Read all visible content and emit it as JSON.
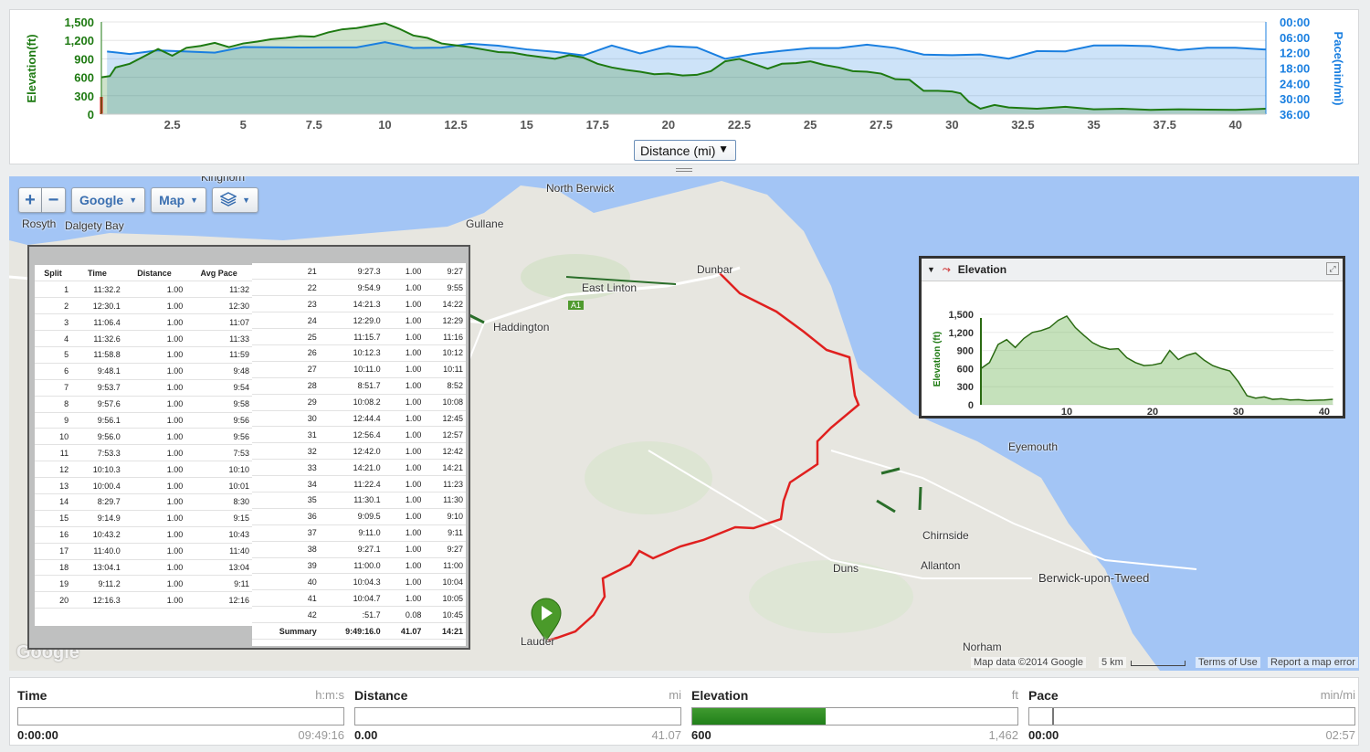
{
  "chart": {
    "y_left_label": "Elevation(ft)",
    "y_right_label": "Pace(min/mi)",
    "y_left_ticks": [
      "1,500",
      "1,200",
      "900",
      "600",
      "300",
      "0"
    ],
    "y_right_ticks": [
      "00:00",
      "06:00",
      "12:00",
      "18:00",
      "24:00",
      "30:00",
      "36:00"
    ],
    "x_ticks": [
      "2.5",
      "5",
      "7.5",
      "10",
      "12.5",
      "15",
      "17.5",
      "20",
      "22.5",
      "25",
      "27.5",
      "30",
      "32.5",
      "35",
      "37.5",
      "40"
    ],
    "x_axis_select": "Distance (mi)",
    "elevation_color": "#1e7a12",
    "pace_color": "#1a7fe0"
  },
  "chart_data": [
    {
      "type": "line",
      "series": [
        {
          "name": "Elevation(ft)",
          "x": [
            0,
            0.3,
            0.5,
            1,
            1.5,
            2,
            2.5,
            3,
            3.5,
            4,
            4.5,
            5,
            5.5,
            6,
            6.5,
            7,
            7.5,
            8,
            8.5,
            9,
            9.5,
            10,
            10.5,
            11,
            11.5,
            12,
            12.5,
            13,
            13.5,
            14,
            14.5,
            15,
            15.5,
            16,
            16.5,
            17,
            17.5,
            18,
            18.5,
            19,
            19.5,
            20,
            20.5,
            21,
            21.5,
            22,
            22.5,
            23,
            23.5,
            24,
            24.5,
            25,
            25.5,
            26,
            26.5,
            27,
            27.5,
            28,
            28.5,
            29,
            29.5,
            30,
            30.3,
            30.6,
            31,
            31.5,
            32,
            33,
            34,
            35,
            36,
            37,
            38,
            39,
            40,
            41.07
          ],
          "values": [
            600,
            620,
            760,
            820,
            940,
            1060,
            950,
            1080,
            1110,
            1160,
            1090,
            1150,
            1180,
            1220,
            1240,
            1270,
            1260,
            1330,
            1380,
            1400,
            1440,
            1480,
            1390,
            1280,
            1240,
            1150,
            1120,
            1090,
            1050,
            1010,
            1000,
            960,
            930,
            900,
            960,
            920,
            820,
            760,
            720,
            690,
            650,
            660,
            630,
            640,
            700,
            860,
            900,
            820,
            740,
            820,
            830,
            860,
            800,
            760,
            700,
            690,
            660,
            570,
            560,
            380,
            380,
            370,
            340,
            200,
            90,
            150,
            110,
            90,
            120,
            80,
            90,
            70,
            80,
            75,
            70,
            90
          ]
        },
        {
          "name": "Pace(min/mi)",
          "x": [
            0.2,
            1,
            2,
            3,
            4,
            5,
            6,
            7,
            8,
            9,
            10,
            11,
            12,
            13,
            14,
            15,
            16,
            17,
            18,
            19,
            20,
            21,
            22,
            23,
            24,
            25,
            26,
            27,
            28,
            29,
            30,
            31,
            32,
            33,
            34,
            35,
            36,
            37,
            38,
            39,
            40,
            41,
            41.07
          ],
          "values": [
            "11:32",
            "12:30",
            "11:07",
            "11:33",
            "11:59",
            "9:48",
            "9:54",
            "9:58",
            "9:56",
            "9:56",
            "7:53",
            "10:10",
            "10:01",
            "8:30",
            "9:15",
            "10:43",
            "11:40",
            "13:04",
            "9:11",
            "12:16",
            "9:27",
            "9:55",
            "14:22",
            "12:29",
            "11:16",
            "10:12",
            "10:11",
            "8:52",
            "10:08",
            "12:45",
            "12:57",
            "12:42",
            "14:21",
            "11:23",
            "11:30",
            "9:10",
            "9:11",
            "9:27",
            "11:00",
            "10:04",
            "10:05",
            "10:45",
            "10:45"
          ]
        }
      ],
      "xlabel": "Distance (mi)",
      "ylabel": "Elevation(ft)",
      "y2label": "Pace(min/mi)",
      "ylim": [
        0,
        1500
      ],
      "y2lim": [
        "36:00",
        "00:00"
      ],
      "xlim": [
        0,
        41.07
      ],
      "grid": true
    },
    {
      "type": "area",
      "title": "Elevation",
      "ylabel": "Elevation (ft)",
      "y_ticks": [
        "1,500",
        "1,200",
        "900",
        "600",
        "300",
        "0"
      ],
      "x_ticks": [
        "10",
        "20",
        "30",
        "40"
      ],
      "ylim": [
        0,
        1500
      ],
      "xlim": [
        0,
        41.07
      ],
      "series": [
        {
          "name": "Elevation (ft)",
          "x": [
            0,
            1,
            2,
            3,
            4,
            5,
            6,
            7,
            8,
            9,
            10,
            11,
            12,
            13,
            14,
            15,
            16,
            17,
            18,
            19,
            20,
            21,
            22,
            23,
            24,
            25,
            26,
            27,
            28,
            29,
            30,
            31,
            32,
            33,
            34,
            35,
            36,
            37,
            38,
            39,
            40,
            41
          ],
          "values": [
            600,
            700,
            1000,
            1080,
            950,
            1100,
            1200,
            1230,
            1280,
            1400,
            1470,
            1280,
            1150,
            1030,
            960,
            920,
            930,
            780,
            700,
            650,
            660,
            690,
            900,
            750,
            820,
            860,
            740,
            650,
            600,
            560,
            380,
            150,
            110,
            130,
            90,
            100,
            80,
            85,
            70,
            75,
            80,
            90
          ]
        }
      ]
    }
  ],
  "map": {
    "buttons": {
      "zoom_in": "+",
      "zoom_out": "−",
      "provider": "Google",
      "type": "Map"
    },
    "places": [
      "North Berwick",
      "Gullane",
      "Dunbar",
      "East Linton",
      "Haddington",
      "Rosyth",
      "Dalgety Bay",
      "Kinghorn",
      "Eyemouth",
      "Chirnside",
      "Duns",
      "Allanton",
      "Berwick-upon-Tweed",
      "Norham",
      "Lauder",
      "A1"
    ],
    "attribution": "Map data ©2014 Google",
    "scale": "5 km",
    "terms": "Terms of Use",
    "report": "Report a map error",
    "logo": "Google",
    "route_color": "#e0201f"
  },
  "splits": {
    "headers": [
      "Split",
      "Time",
      "Distance",
      "Avg Pace"
    ],
    "left": [
      [
        "1",
        "11:32.2",
        "1.00",
        "11:32"
      ],
      [
        "2",
        "12:30.1",
        "1.00",
        "12:30"
      ],
      [
        "3",
        "11:06.4",
        "1.00",
        "11:07"
      ],
      [
        "4",
        "11:32.6",
        "1.00",
        "11:33"
      ],
      [
        "5",
        "11:58.8",
        "1.00",
        "11:59"
      ],
      [
        "6",
        "9:48.1",
        "1.00",
        "9:48"
      ],
      [
        "7",
        "9:53.7",
        "1.00",
        "9:54"
      ],
      [
        "8",
        "9:57.6",
        "1.00",
        "9:58"
      ],
      [
        "9",
        "9:56.1",
        "1.00",
        "9:56"
      ],
      [
        "10",
        "9:56.0",
        "1.00",
        "9:56"
      ],
      [
        "11",
        "7:53.3",
        "1.00",
        "7:53"
      ],
      [
        "12",
        "10:10.3",
        "1.00",
        "10:10"
      ],
      [
        "13",
        "10:00.4",
        "1.00",
        "10:01"
      ],
      [
        "14",
        "8:29.7",
        "1.00",
        "8:30"
      ],
      [
        "15",
        "9:14.9",
        "1.00",
        "9:15"
      ],
      [
        "16",
        "10:43.2",
        "1.00",
        "10:43"
      ],
      [
        "17",
        "11:40.0",
        "1.00",
        "11:40"
      ],
      [
        "18",
        "13:04.1",
        "1.00",
        "13:04"
      ],
      [
        "19",
        "9:11.2",
        "1.00",
        "9:11"
      ],
      [
        "20",
        "12:16.3",
        "1.00",
        "12:16"
      ]
    ],
    "right": [
      [
        "21",
        "9:27.3",
        "1.00",
        "9:27"
      ],
      [
        "22",
        "9:54.9",
        "1.00",
        "9:55"
      ],
      [
        "23",
        "14:21.3",
        "1.00",
        "14:22"
      ],
      [
        "24",
        "12:29.0",
        "1.00",
        "12:29"
      ],
      [
        "25",
        "11:15.7",
        "1.00",
        "11:16"
      ],
      [
        "26",
        "10:12.3",
        "1.00",
        "10:12"
      ],
      [
        "27",
        "10:11.0",
        "1.00",
        "10:11"
      ],
      [
        "28",
        "8:51.7",
        "1.00",
        "8:52"
      ],
      [
        "29",
        "10:08.2",
        "1.00",
        "10:08"
      ],
      [
        "30",
        "12:44.4",
        "1.00",
        "12:45"
      ],
      [
        "31",
        "12:56.4",
        "1.00",
        "12:57"
      ],
      [
        "32",
        "12:42.0",
        "1.00",
        "12:42"
      ],
      [
        "33",
        "14:21.0",
        "1.00",
        "14:21"
      ],
      [
        "34",
        "11:22.4",
        "1.00",
        "11:23"
      ],
      [
        "35",
        "11:30.1",
        "1.00",
        "11:30"
      ],
      [
        "36",
        "9:09.5",
        "1.00",
        "9:10"
      ],
      [
        "37",
        "9:11.0",
        "1.00",
        "9:11"
      ],
      [
        "38",
        "9:27.1",
        "1.00",
        "9:27"
      ],
      [
        "39",
        "11:00.0",
        "1.00",
        "11:00"
      ],
      [
        "40",
        "10:04.3",
        "1.00",
        "10:04"
      ],
      [
        "41",
        "10:04.7",
        "1.00",
        "10:05"
      ],
      [
        "42",
        ":51.7",
        "0.08",
        "10:45"
      ]
    ],
    "summary": [
      "Summary",
      "9:49:16.0",
      "41.07",
      "14:21"
    ]
  },
  "elevation_popup": {
    "title": "Elevation",
    "ylabel": "Elevation (ft)"
  },
  "gauges": [
    {
      "title": "Time",
      "unit": "h:m:s",
      "current": "0:00:00",
      "max": "09:49:16",
      "fraction": 0.0
    },
    {
      "title": "Distance",
      "unit": "mi",
      "current": "0.00",
      "max": "41.07",
      "fraction": 0.0
    },
    {
      "title": "Elevation",
      "unit": "ft",
      "current": "600",
      "max": "1,462",
      "fraction": 0.41
    },
    {
      "title": "Pace",
      "unit": "min/mi",
      "current": "00:00",
      "max": "02:57",
      "fraction": 0.07
    }
  ]
}
